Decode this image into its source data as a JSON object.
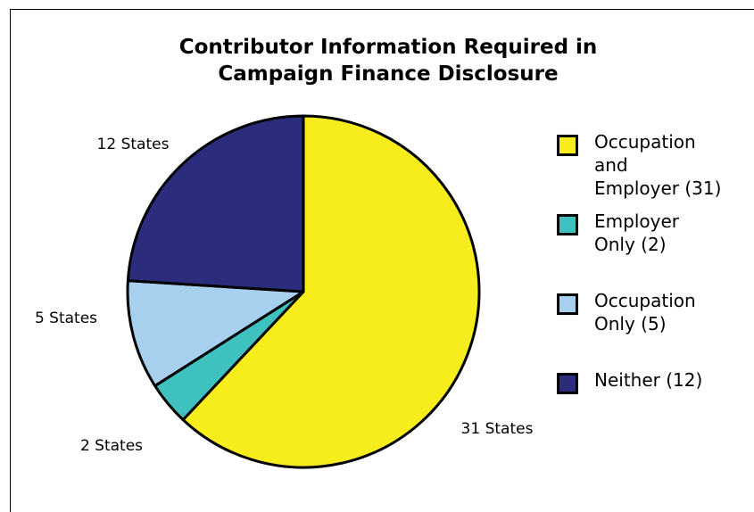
{
  "chart_data": {
    "type": "pie",
    "title_lines": [
      "Contributor Information Required in",
      "Campaign Finance Disclosure"
    ],
    "slices": [
      {
        "name": "Occupation and Employer",
        "legend_lines": [
          "Occupation",
          "and",
          "Employer (31)"
        ],
        "value": 31,
        "data_label": "31 States",
        "color": "#f7ec1c"
      },
      {
        "name": "Employer Only",
        "legend_lines": [
          "Employer",
          "Only (2)"
        ],
        "value": 2,
        "data_label": "2 States",
        "color": "#3fc1c0"
      },
      {
        "name": "Occupation Only",
        "legend_lines": [
          "Occupation",
          "Only (5)"
        ],
        "value": 5,
        "data_label": "5 States",
        "color": "#a7cfee"
      },
      {
        "name": "Neither",
        "legend_lines": [
          "Neither (12)"
        ],
        "value": 12,
        "data_label": "12 States",
        "color": "#2b2c7c"
      }
    ],
    "legend_position": "right"
  }
}
